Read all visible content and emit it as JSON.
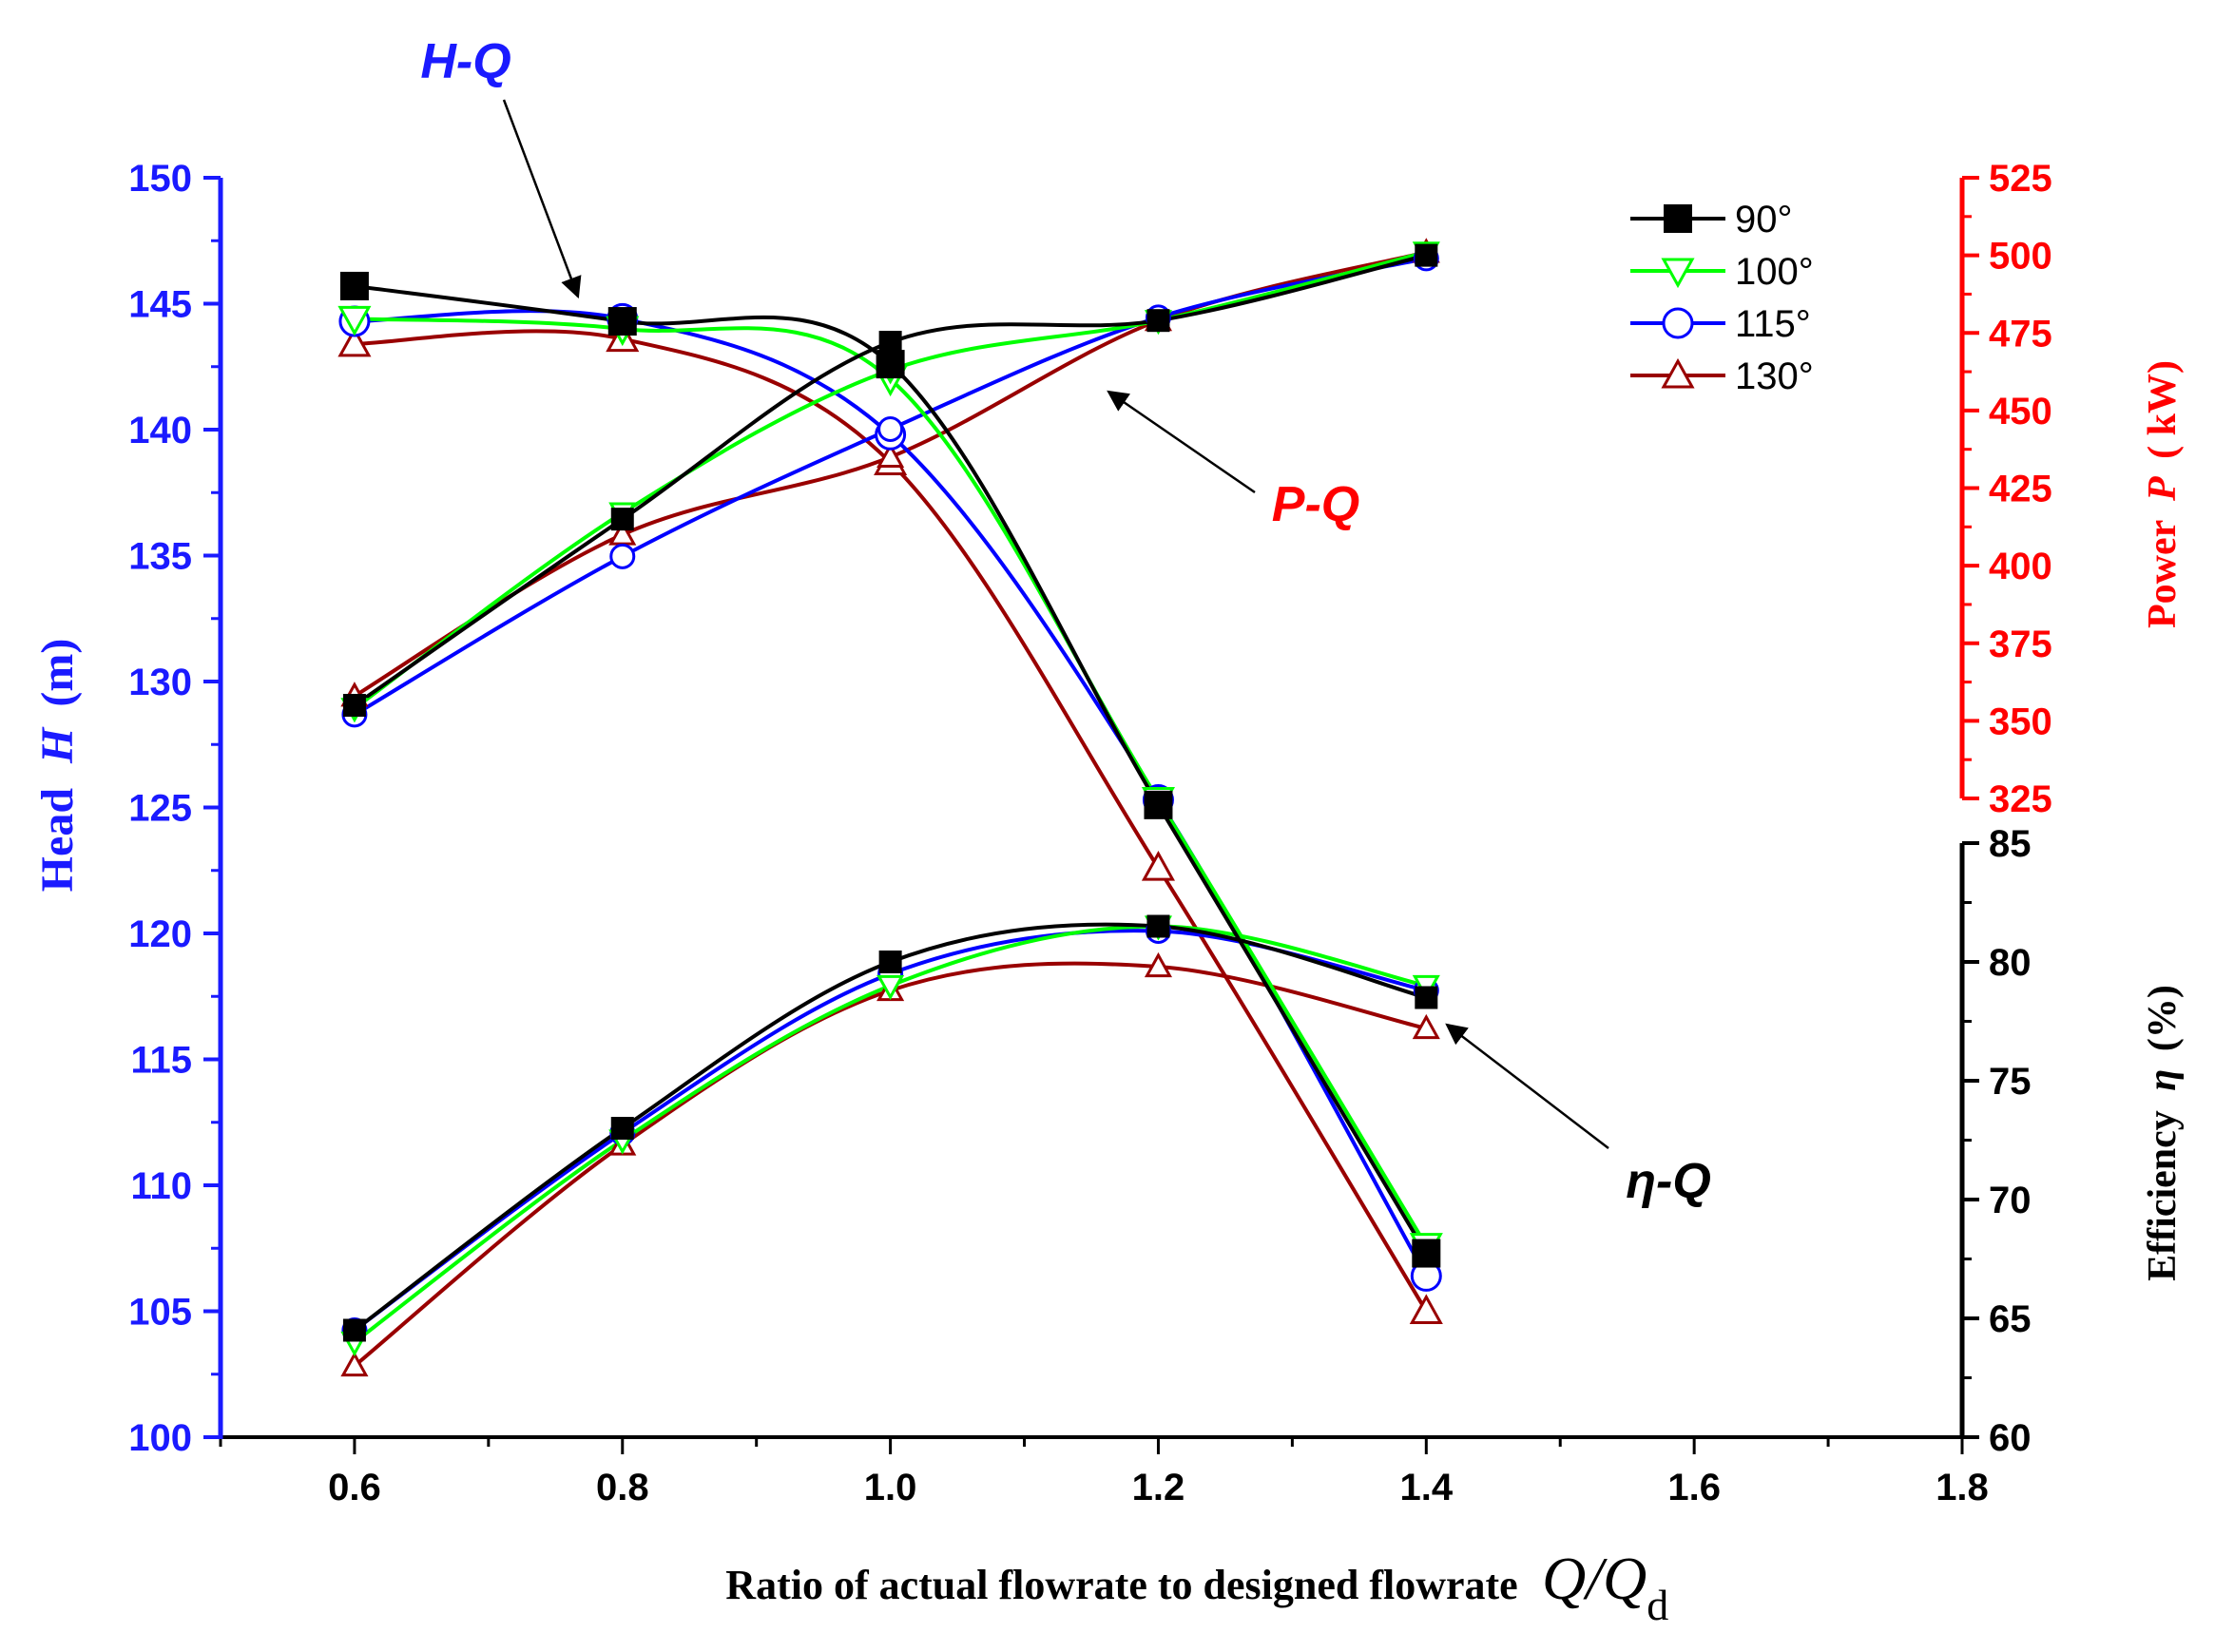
{
  "chart_data": {
    "type": "line",
    "xlabel": "Ratio of actual flowrate to designed flowrate",
    "xlabel_symbol": "Q/Q",
    "xlabel_subscript": "d",
    "x_ticks": [
      "0.6",
      "0.8",
      "1.0",
      "1.2",
      "1.4",
      "1.6",
      "1.8"
    ],
    "xlim": [
      0.5,
      1.8
    ],
    "x": [
      0.6,
      0.8,
      1.0,
      1.2,
      1.4
    ],
    "axes": {
      "head": {
        "label": "Head",
        "symbol": "H",
        "unit": "(m)",
        "color": "#1a1aff",
        "ylim": [
          100,
          150
        ],
        "ticks": [
          "100",
          "105",
          "110",
          "115",
          "120",
          "125",
          "130",
          "135",
          "140",
          "145",
          "150"
        ]
      },
      "power": {
        "label": "Power",
        "symbol": "P",
        "unit": "( kW)",
        "color": "#ff0000",
        "ylim": [
          325,
          525
        ],
        "ticks": [
          "325",
          "350",
          "375",
          "400",
          "425",
          "450",
          "475",
          "500",
          "525"
        ]
      },
      "efficiency": {
        "label": "Efficiency",
        "symbol": "η",
        "unit": "(%)",
        "color": "#000000",
        "ylim": [
          60,
          85
        ],
        "ticks": [
          "60",
          "65",
          "70",
          "75",
          "80",
          "85"
        ]
      }
    },
    "curve_labels": {
      "hq": "H-Q",
      "pq": "P-Q",
      "eq": "η-Q"
    },
    "legend": {
      "position": "top-right"
    },
    "series": [
      {
        "name": "90°",
        "color": "#000000",
        "marker": "square",
        "head": [
          145.7,
          144.3,
          142.6,
          125.1,
          107.3
        ],
        "power": [
          355,
          415,
          472,
          479,
          500
        ],
        "efficiency": [
          64.5,
          73.0,
          80.0,
          81.5,
          78.5
        ]
      },
      {
        "name": "100°",
        "color": "#00ff00",
        "marker": "triangle-down",
        "head": [
          144.4,
          144.0,
          142.0,
          125.3,
          107.6
        ],
        "power": [
          354,
          417,
          463,
          479,
          501
        ],
        "efficiency": [
          64.0,
          72.5,
          79.0,
          81.5,
          79.0
        ]
      },
      {
        "name": "115°",
        "color": "#0000ff",
        "marker": "circle",
        "head": [
          144.3,
          144.4,
          139.8,
          125.3,
          106.4
        ],
        "power": [
          352,
          403,
          444,
          480,
          499
        ],
        "efficiency": [
          64.5,
          72.8,
          79.5,
          81.3,
          78.8
        ]
      },
      {
        "name": "130°",
        "color": "#990000",
        "marker": "triangle-up",
        "head": [
          143.4,
          143.6,
          138.7,
          122.6,
          105.0
        ],
        "power": [
          358,
          410,
          435,
          479,
          501
        ],
        "efficiency": [
          63.0,
          72.3,
          78.8,
          79.8,
          77.2
        ]
      }
    ]
  }
}
